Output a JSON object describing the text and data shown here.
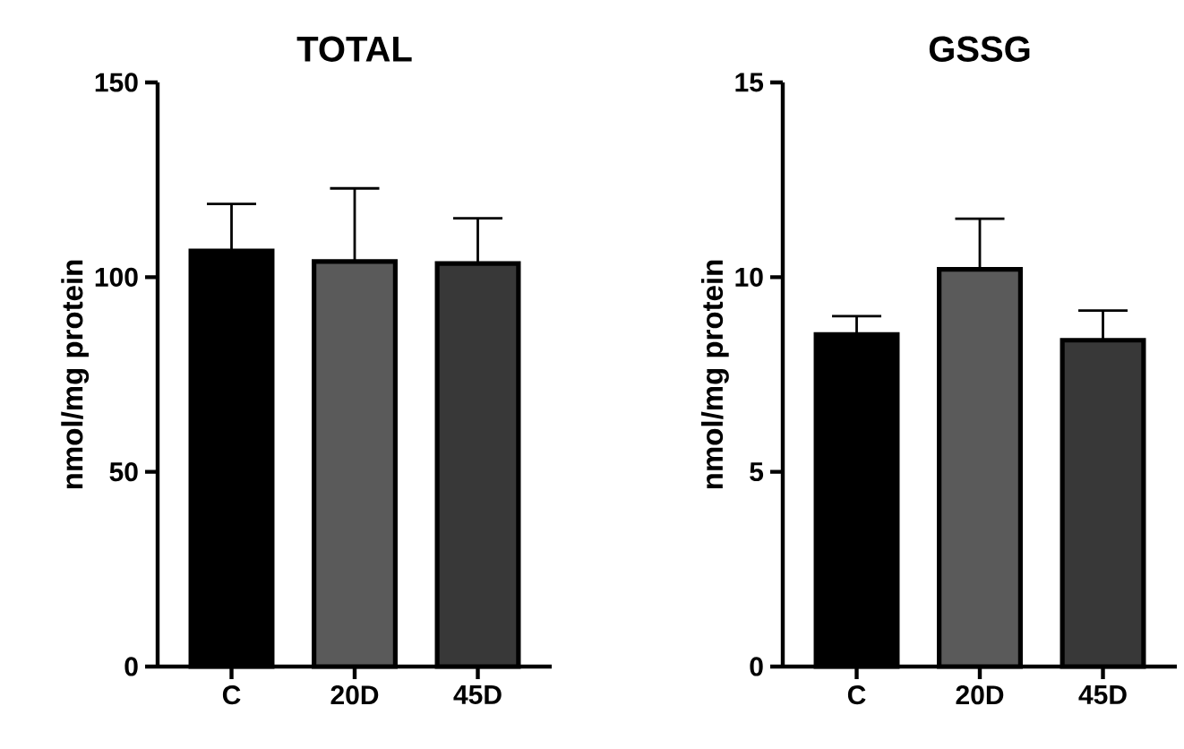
{
  "chart_data": [
    {
      "type": "bar",
      "title": "TOTAL",
      "ylabel": "nmol/mg protein",
      "categories": [
        "C",
        "20D",
        "45D"
      ],
      "values": [
        106.7,
        104,
        103.5
      ],
      "colors": [
        "#000000",
        "#5a5a5a",
        "#383838"
      ],
      "errors": [
        [
          106.7,
          118.8
        ],
        [
          104,
          122.8
        ],
        [
          103.5,
          115.1
        ]
      ],
      "ylim": [
        0,
        150
      ],
      "yticks": [
        0,
        50,
        100,
        150
      ]
    },
    {
      "type": "bar",
      "title": "GSSG",
      "ylabel": "nmol/mg protein",
      "categories": [
        "C",
        "20D",
        "45D"
      ],
      "values": [
        8.53,
        10.2,
        8.38
      ],
      "colors": [
        "#000000",
        "#5a5a5a",
        "#383838"
      ],
      "errors": [
        [
          8.53,
          9.0
        ],
        [
          10.2,
          11.5
        ],
        [
          8.38,
          9.14
        ]
      ],
      "ylim": [
        0,
        15
      ],
      "yticks": [
        0,
        5,
        10,
        15
      ]
    }
  ]
}
